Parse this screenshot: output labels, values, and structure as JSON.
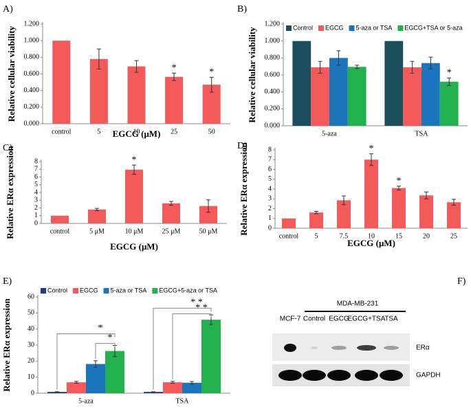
{
  "chart_data": [
    {
      "type": "bar",
      "panel_label": "A)",
      "ylabel": "Relative cellular viability",
      "xlabel": "EGCG (μM)",
      "categories": [
        "control",
        "5",
        "10",
        "25",
        "50"
      ],
      "values": [
        1.0,
        0.78,
        0.69,
        0.565,
        0.47
      ],
      "errors": [
        0,
        0.12,
        0.07,
        0.045,
        0.09
      ],
      "annotations": [
        null,
        null,
        null,
        "*",
        "*"
      ],
      "color": "#f55a5a",
      "ylim": [
        0,
        1.2
      ],
      "yticks": [
        {
          "value": 0,
          "label": "0.000"
        },
        {
          "value": 0.2,
          "label": "0.200"
        },
        {
          "value": 0.4,
          "label": "0.400"
        },
        {
          "value": 0.6,
          "label": "0.600"
        },
        {
          "value": 0.8,
          "label": "0.800"
        },
        {
          "value": 1.0,
          "label": "1.000"
        },
        {
          "value": 1.2,
          "label": "1.200"
        }
      ]
    },
    {
      "type": "grouped-bar",
      "panel_label": "B)",
      "ylabel": "Relative cellular viability",
      "categories": [
        "5-aza",
        "TSA"
      ],
      "series": [
        {
          "name": "Control",
          "color": "#1d4e5e",
          "values": [
            1.0,
            1.0
          ],
          "errors": [
            0,
            0
          ]
        },
        {
          "name": "EGCG",
          "color": "#f55a5a",
          "values": [
            0.69,
            0.69
          ],
          "errors": [
            0.07,
            0.07
          ]
        },
        {
          "name": "5-aza or TSA",
          "color": "#1b75bc",
          "values": [
            0.8,
            0.74
          ],
          "errors": [
            0.085,
            0.07
          ]
        },
        {
          "name": "EGCG+TSA or 5-aza",
          "color": "#22b14c",
          "values": [
            0.695,
            0.52
          ],
          "errors": [
            0.02,
            0.045
          ],
          "annotations": [
            null,
            "*"
          ]
        }
      ],
      "ylim": [
        0,
        1.2
      ],
      "yticks": [
        {
          "value": 0,
          "label": "0.000"
        },
        {
          "value": 0.2,
          "label": "0.200"
        },
        {
          "value": 0.4,
          "label": "0.400"
        },
        {
          "value": 0.6,
          "label": "0.600"
        },
        {
          "value": 0.8,
          "label": "0.800"
        },
        {
          "value": 1.0,
          "label": "1.000"
        },
        {
          "value": 1.2,
          "label": "1.200"
        }
      ]
    },
    {
      "type": "bar",
      "panel_label": "C)",
      "ylabel": "Relative ERα expression",
      "xlabel": "EGCG (μM)",
      "categories": [
        "control",
        "5 μM",
        "10 μM",
        "25 μM",
        "50 μM"
      ],
      "values": [
        1.0,
        1.8,
        6.95,
        2.6,
        2.25
      ],
      "errors": [
        0,
        0.15,
        0.6,
        0.25,
        0.8
      ],
      "annotations": [
        null,
        null,
        "*",
        null,
        null
      ],
      "color": "#f55a5a",
      "ylim": [
        0,
        8
      ],
      "yticks": [
        0,
        1,
        2,
        3,
        4,
        5,
        6,
        7,
        8
      ]
    },
    {
      "type": "bar",
      "panel_label": "D)",
      "ylabel": "Relative ERα expression",
      "xlabel": "EGCG (μM)",
      "categories": [
        "control",
        "5",
        "7.5",
        "10",
        "15",
        "20",
        "25"
      ],
      "values": [
        1.0,
        1.6,
        2.85,
        7.0,
        4.1,
        3.35,
        2.65
      ],
      "errors": [
        0,
        0.12,
        0.45,
        0.6,
        0.2,
        0.35,
        0.3
      ],
      "annotations": [
        null,
        null,
        null,
        "*",
        "*",
        null,
        null
      ],
      "color": "#f55a5a",
      "ylim": [
        0,
        8
      ],
      "yticks": [
        0,
        1,
        2,
        3,
        4,
        5,
        6,
        7,
        8
      ]
    },
    {
      "type": "grouped-bar",
      "panel_label": "E)",
      "ylabel": "Relative ERα expression",
      "categories": [
        "5-aza",
        "TSA"
      ],
      "series": [
        {
          "name": "Control",
          "color": "#1f3c88",
          "values": [
            0.8,
            0.8
          ],
          "errors": [
            0.1,
            0.1
          ]
        },
        {
          "name": "EGCG",
          "color": "#f55a5a",
          "values": [
            6.8,
            6.8
          ],
          "errors": [
            0.6,
            0.6
          ]
        },
        {
          "name": "5-aza or TSA",
          "color": "#1b75bc",
          "values": [
            18.2,
            6.5
          ],
          "errors": [
            2,
            0.8
          ]
        },
        {
          "name": "EGCG+5-aza or TSA",
          "color": "#22b14c",
          "values": [
            26.3,
            45.8
          ],
          "errors": [
            3.5,
            3
          ]
        }
      ],
      "brackets": [
        "*",
        "*",
        "* *",
        "* *"
      ],
      "ylim": [
        0,
        60
      ],
      "yticks": [
        0,
        10,
        20,
        30,
        40,
        50,
        60
      ]
    }
  ],
  "blot": {
    "panel_label": "F)",
    "cell_line": "MDA-MB-231",
    "lanes": [
      "MCF-7",
      "Control",
      "EGCG",
      "EGCG+TSA",
      "TSA"
    ],
    "rows": [
      "ERα",
      "GAPDH"
    ]
  }
}
